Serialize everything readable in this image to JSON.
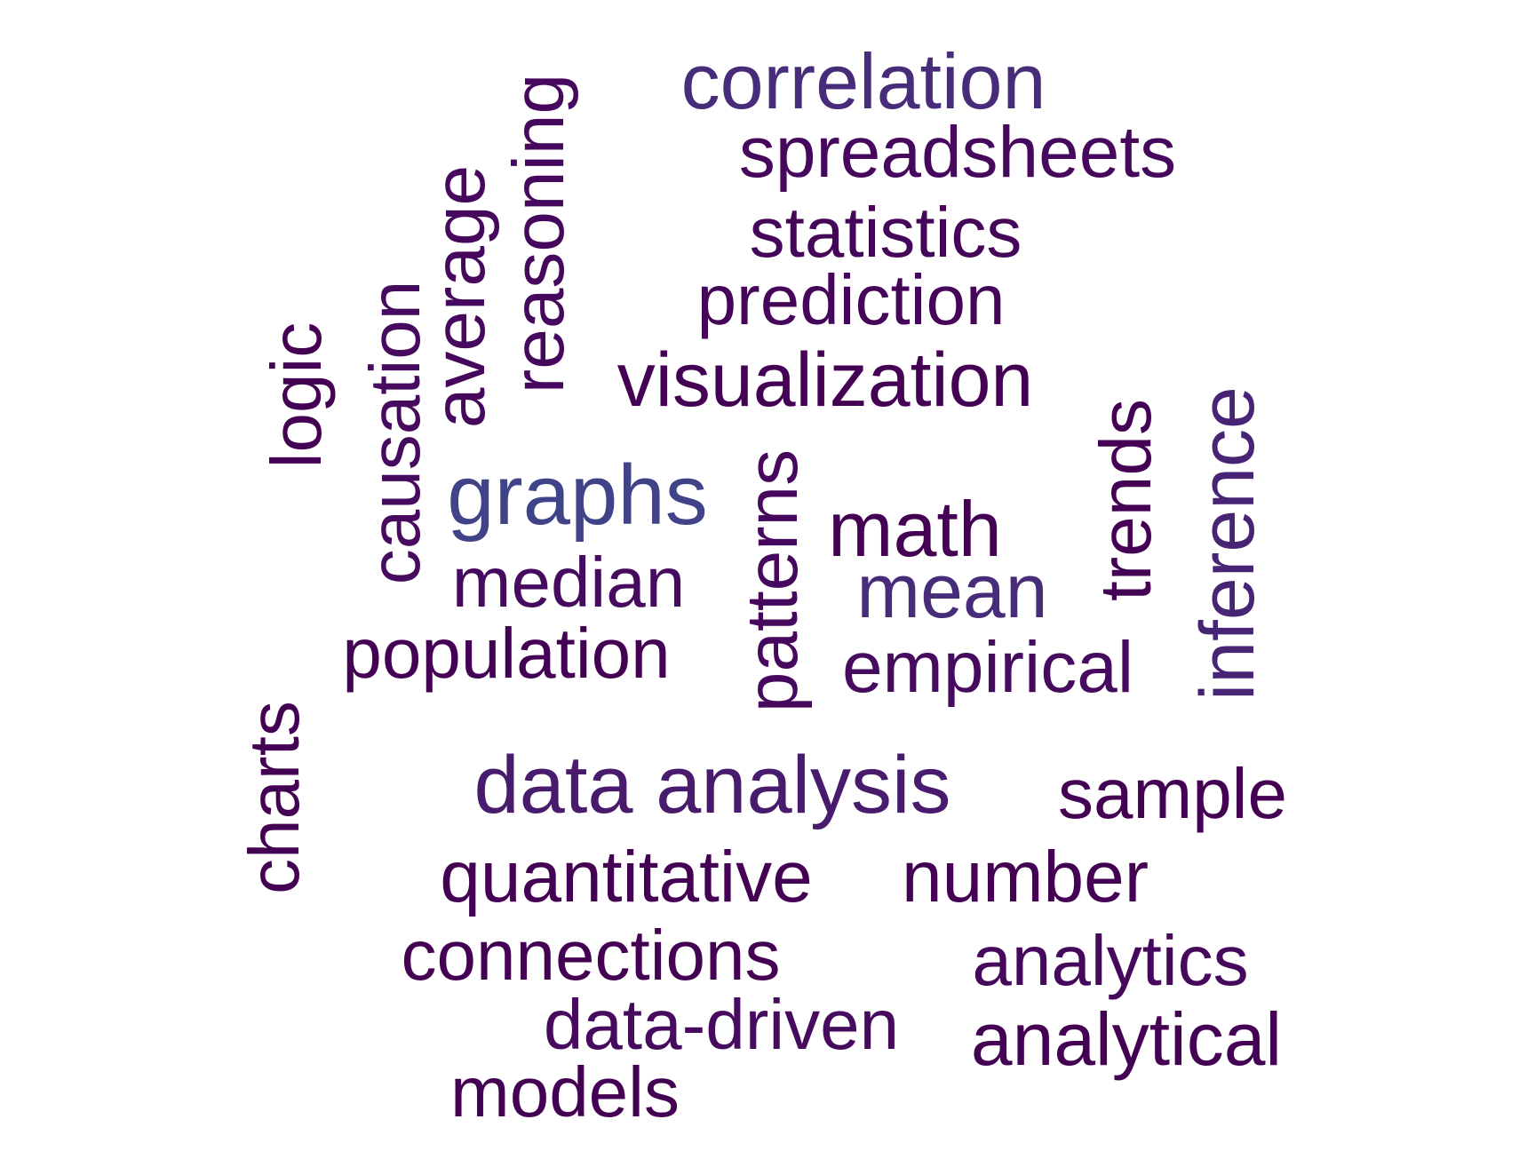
{
  "cloud": {
    "words": [
      {
        "key": "correlation",
        "text": "correlation",
        "color": "#472c7a"
      },
      {
        "key": "spreadsheets",
        "text": "spreadsheets",
        "color": "#46085c"
      },
      {
        "key": "statistics",
        "text": "statistics",
        "color": "#450559"
      },
      {
        "key": "prediction",
        "text": "prediction",
        "color": "#450559"
      },
      {
        "key": "visualization",
        "text": "visualization",
        "color": "#440154"
      },
      {
        "key": "reasoning",
        "text": "reasoning",
        "color": "#46085c"
      },
      {
        "key": "average",
        "text": "average",
        "color": "#46085c"
      },
      {
        "key": "causation",
        "text": "causation",
        "color": "#460b5e"
      },
      {
        "key": "logic",
        "text": "logic",
        "color": "#440154"
      },
      {
        "key": "graphs",
        "text": "graphs",
        "color": "#404387"
      },
      {
        "key": "median",
        "text": "median",
        "color": "#460b5e"
      },
      {
        "key": "patterns",
        "text": "patterns",
        "color": "#46085c"
      },
      {
        "key": "math",
        "text": "math",
        "color": "#440154"
      },
      {
        "key": "mean",
        "text": "mean",
        "color": "#472c7a"
      },
      {
        "key": "trends",
        "text": "trends",
        "color": "#440154"
      },
      {
        "key": "inference",
        "text": "inference",
        "color": "#482475"
      },
      {
        "key": "population",
        "text": "population",
        "color": "#440154"
      },
      {
        "key": "empirical",
        "text": "empirical",
        "color": "#460b5e"
      },
      {
        "key": "charts",
        "text": "charts",
        "color": "#440154"
      },
      {
        "key": "data_analysis",
        "text": "data analysis",
        "color": "#481b6d"
      },
      {
        "key": "sample",
        "text": "sample",
        "color": "#440154"
      },
      {
        "key": "quantitative",
        "text": "quantitative",
        "color": "#440154"
      },
      {
        "key": "number",
        "text": "number",
        "color": "#440154"
      },
      {
        "key": "connections",
        "text": "connections",
        "color": "#440154"
      },
      {
        "key": "analytics",
        "text": "analytics",
        "color": "#46085c"
      },
      {
        "key": "data_driven",
        "text": "data-driven",
        "color": "#460b5e"
      },
      {
        "key": "analytical",
        "text": "analytical",
        "color": "#440154"
      },
      {
        "key": "models",
        "text": "models",
        "color": "#440154"
      }
    ]
  }
}
